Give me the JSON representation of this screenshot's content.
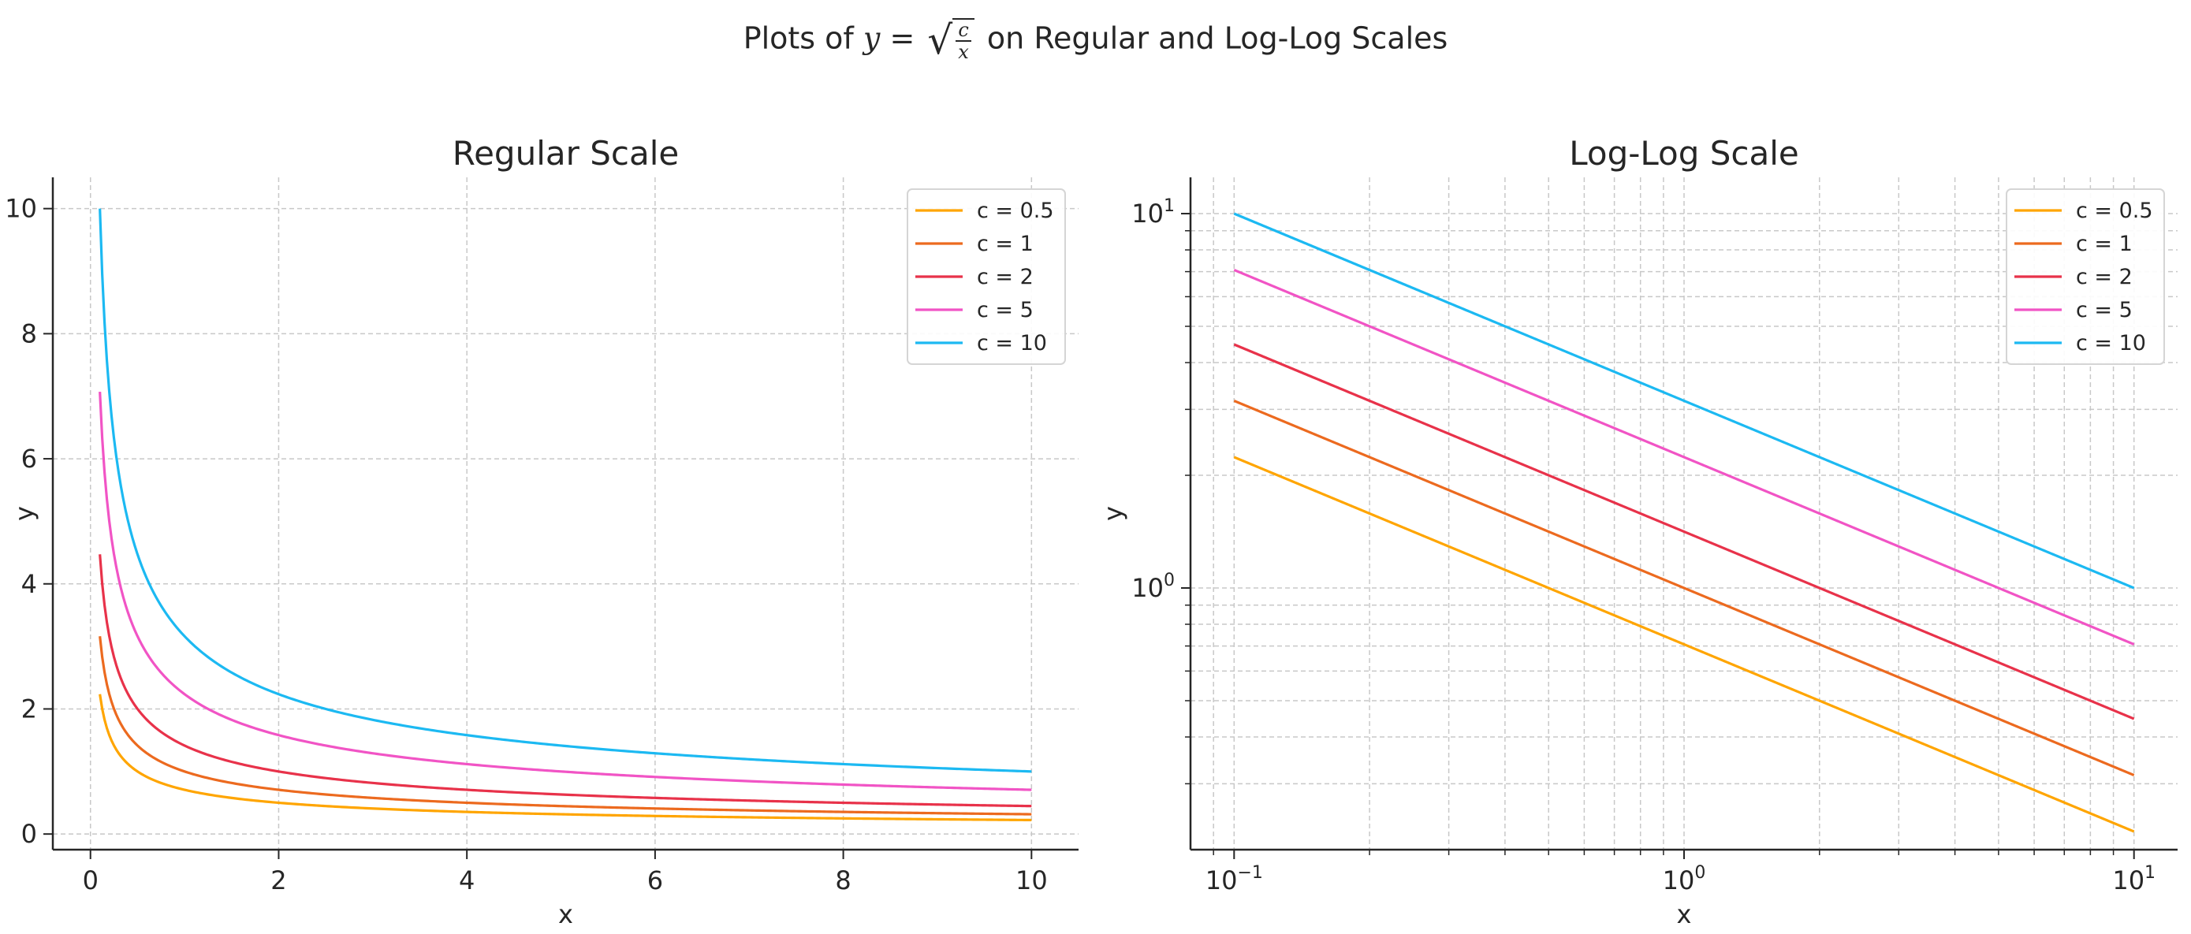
{
  "figure": {
    "suptitle_prefix": "Plots of",
    "suptitle_y": "y",
    "suptitle_eq": "=",
    "suptitle_num": "c",
    "suptitle_den": "x",
    "suptitle_suffix": "on Regular and Log-Log Scales"
  },
  "chart_data": [
    {
      "type": "line",
      "title": "Regular Scale",
      "xlabel": "x",
      "ylabel": "y",
      "xscale": "linear",
      "yscale": "linear",
      "xlim": [
        -0.4,
        10.5
      ],
      "ylim": [
        -0.25,
        10.5
      ],
      "xticks": [
        0,
        2,
        4,
        6,
        8,
        10
      ],
      "xtick_labels": [
        "0",
        "2",
        "4",
        "6",
        "8",
        "10"
      ],
      "yticks": [
        0,
        2,
        4,
        6,
        8,
        10
      ],
      "ytick_labels": [
        "0",
        "2",
        "4",
        "6",
        "8",
        "10"
      ],
      "grid": true,
      "legend": "top-right",
      "function": "y = sqrt(c / x)",
      "x_range": [
        0.1,
        10
      ],
      "x": [
        0.1,
        0.2,
        0.5,
        1,
        2,
        4,
        6,
        8,
        10
      ],
      "series": [
        {
          "name": "c = 0.5",
          "color": "#ffa500",
          "c": 0.5,
          "values": [
            2.24,
            1.58,
            1.0,
            0.71,
            0.5,
            0.35,
            0.29,
            0.25,
            0.22
          ]
        },
        {
          "name": "c = 1",
          "color": "#ec6a1f",
          "c": 1,
          "values": [
            3.16,
            2.24,
            1.41,
            1.0,
            0.71,
            0.5,
            0.41,
            0.35,
            0.32
          ]
        },
        {
          "name": "c = 2",
          "color": "#e8324a",
          "c": 2,
          "values": [
            4.47,
            3.16,
            2.0,
            1.41,
            1.0,
            0.71,
            0.58,
            0.5,
            0.45
          ]
        },
        {
          "name": "c = 5",
          "color": "#f154c5",
          "c": 5,
          "values": [
            7.07,
            5.0,
            3.16,
            2.24,
            1.58,
            1.12,
            0.91,
            0.79,
            0.71
          ]
        },
        {
          "name": "c = 10",
          "color": "#1cb9f2",
          "c": 10,
          "values": [
            10.0,
            7.07,
            4.47,
            3.16,
            2.24,
            1.58,
            1.29,
            1.12,
            1.0
          ]
        }
      ]
    },
    {
      "type": "line",
      "title": "Log-Log Scale",
      "xlabel": "x",
      "ylabel": "y",
      "xscale": "log",
      "yscale": "log",
      "xlim": [
        0.08,
        12.5
      ],
      "ylim": [
        0.2,
        12.5
      ],
      "xticks": [
        0.1,
        1,
        10
      ],
      "xtick_labels": [
        {
          "base": "10",
          "exp": "−1"
        },
        {
          "base": "10",
          "exp": "0"
        },
        {
          "base": "10",
          "exp": "1"
        }
      ],
      "yticks": [
        1,
        10
      ],
      "ytick_labels": [
        {
          "base": "10",
          "exp": "0"
        },
        {
          "base": "10",
          "exp": "1"
        }
      ],
      "grid": true,
      "legend": "top-right",
      "function": "y = sqrt(c / x)",
      "x_range": [
        0.1,
        10
      ],
      "x": [
        0.1,
        1,
        10
      ],
      "series": [
        {
          "name": "c = 0.5",
          "color": "#ffa500",
          "c": 0.5,
          "values": [
            2.24,
            0.71,
            0.22
          ]
        },
        {
          "name": "c = 1",
          "color": "#ec6a1f",
          "c": 1,
          "values": [
            3.16,
            1.0,
            0.32
          ]
        },
        {
          "name": "c = 2",
          "color": "#e8324a",
          "c": 2,
          "values": [
            4.47,
            1.41,
            0.45
          ]
        },
        {
          "name": "c = 5",
          "color": "#f154c5",
          "c": 5,
          "values": [
            7.07,
            2.24,
            0.71
          ]
        },
        {
          "name": "c = 10",
          "color": "#1cb9f2",
          "c": 10,
          "values": [
            10.0,
            3.16,
            1.0
          ]
        }
      ]
    }
  ]
}
